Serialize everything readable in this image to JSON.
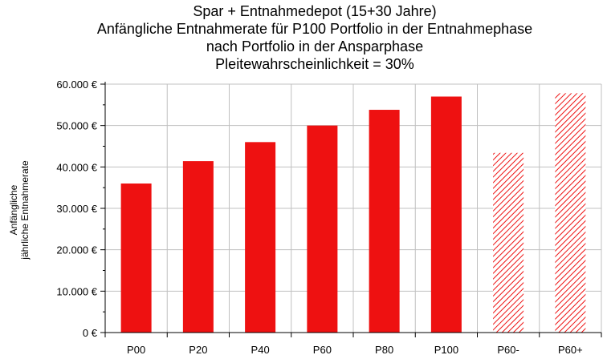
{
  "chart_data": {
    "type": "bar",
    "title_lines": [
      "Spar + Entnahmedepot (15+30 Jahre)",
      "Anfängliche Entnahmerate für P100 Portfolio in der Entnahmephase",
      "nach Portfolio in der Ansparphase",
      "Pleitewahrscheinlichkeit = 30%"
    ],
    "ylabel_lines": [
      "Anfängliche",
      "jährliche Entnahmerate"
    ],
    "xlabel": "",
    "categories": [
      "P00",
      "P20",
      "P40",
      "P60",
      "P80",
      "P100",
      "P60-",
      "P60+"
    ],
    "values": [
      36000,
      41400,
      46000,
      50000,
      53800,
      57000,
      43400,
      57800
    ],
    "hatched": [
      false,
      false,
      false,
      false,
      false,
      false,
      true,
      true
    ],
    "ylim": [
      0,
      60000
    ],
    "yticks": [
      0,
      10000,
      20000,
      30000,
      40000,
      50000,
      60000
    ],
    "ytick_labels": [
      "0 €",
      "10.000 €",
      "20.000 €",
      "30.000 €",
      "40.000 €",
      "50.000 €",
      "60.000 €"
    ],
    "grid": true,
    "legend": "none",
    "colors": {
      "bar": "#ee1111",
      "grid": "#c0c0c0",
      "axis": "#000000"
    }
  }
}
